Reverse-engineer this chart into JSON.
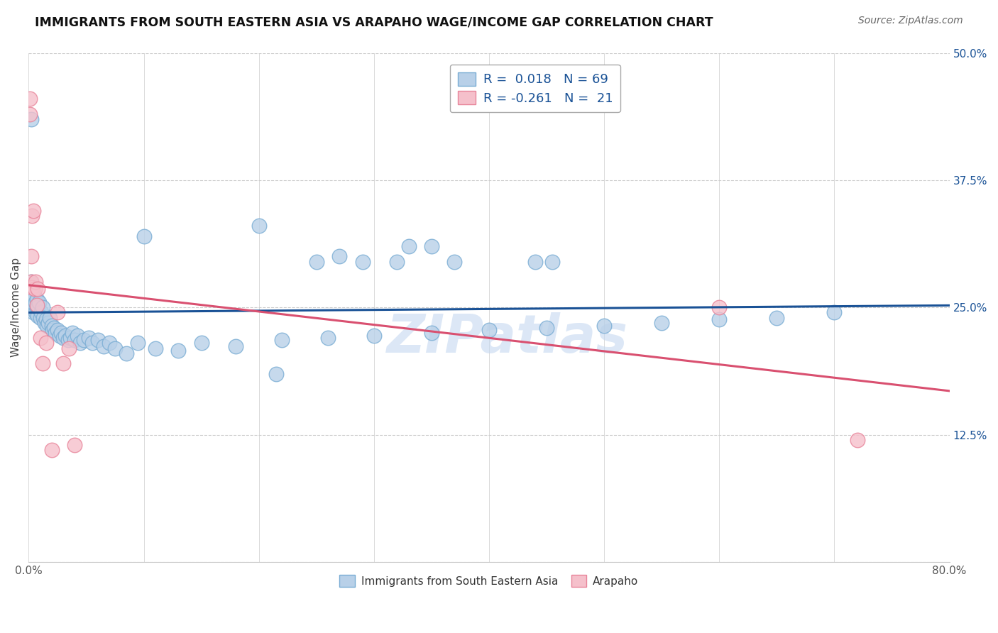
{
  "title": "IMMIGRANTS FROM SOUTH EASTERN ASIA VS ARAPAHO WAGE/INCOME GAP CORRELATION CHART",
  "source": "Source: ZipAtlas.com",
  "ylabel": "Wage/Income Gap",
  "xlim": [
    0.0,
    0.8
  ],
  "ylim": [
    0.0,
    0.5
  ],
  "xticks": [
    0.0,
    0.1,
    0.2,
    0.3,
    0.4,
    0.5,
    0.6,
    0.7,
    0.8
  ],
  "yticks": [
    0.0,
    0.125,
    0.25,
    0.375,
    0.5
  ],
  "yticklabels_right": [
    "",
    "12.5%",
    "25.0%",
    "37.5%",
    "50.0%"
  ],
  "blue_color": "#b8d0e8",
  "blue_edge": "#7aadd4",
  "pink_color": "#f5c0cb",
  "pink_edge": "#e8849a",
  "trend_blue": "#1a5296",
  "trend_pink": "#d95070",
  "grid_color": "#cccccc",
  "watermark": "ZIPatlas",
  "watermark_color": "#c5d8f0",
  "legend_r_blue": "0.018",
  "legend_n_blue": "69",
  "legend_r_pink": "-0.261",
  "legend_n_pink": "21",
  "legend_label_blue": "Immigrants from South Eastern Asia",
  "legend_label_pink": "Arapaho",
  "blue_x": [
    0.001,
    0.001,
    0.002,
    0.002,
    0.002,
    0.003,
    0.003,
    0.003,
    0.004,
    0.004,
    0.004,
    0.005,
    0.005,
    0.005,
    0.006,
    0.006,
    0.007,
    0.007,
    0.008,
    0.008,
    0.009,
    0.01,
    0.011,
    0.012,
    0.013,
    0.014,
    0.015,
    0.016,
    0.017,
    0.018,
    0.02,
    0.021,
    0.022,
    0.023,
    0.025,
    0.027,
    0.028,
    0.03,
    0.032,
    0.034,
    0.036,
    0.038,
    0.04,
    0.042,
    0.045,
    0.048,
    0.052,
    0.055,
    0.06,
    0.065,
    0.07,
    0.075,
    0.085,
    0.095,
    0.11,
    0.13,
    0.15,
    0.18,
    0.22,
    0.26,
    0.3,
    0.35,
    0.4,
    0.45,
    0.5,
    0.55,
    0.6,
    0.65,
    0.7
  ],
  "blue_y": [
    0.26,
    0.27,
    0.25,
    0.265,
    0.275,
    0.255,
    0.26,
    0.265,
    0.245,
    0.255,
    0.265,
    0.248,
    0.252,
    0.26,
    0.245,
    0.255,
    0.25,
    0.258,
    0.242,
    0.25,
    0.255,
    0.24,
    0.245,
    0.25,
    0.24,
    0.235,
    0.238,
    0.232,
    0.235,
    0.24,
    0.232,
    0.228,
    0.23,
    0.225,
    0.228,
    0.222,
    0.225,
    0.22,
    0.222,
    0.218,
    0.22,
    0.225,
    0.218,
    0.222,
    0.215,
    0.218,
    0.22,
    0.215,
    0.218,
    0.212,
    0.215,
    0.21,
    0.205,
    0.215,
    0.21,
    0.208,
    0.215,
    0.212,
    0.218,
    0.22,
    0.222,
    0.225,
    0.228,
    0.23,
    0.232,
    0.235,
    0.238,
    0.24,
    0.245
  ],
  "blue_x_extra": [
    0.002,
    0.33,
    0.1,
    0.2,
    0.215,
    0.44,
    0.455,
    0.35,
    0.37,
    0.32,
    0.29,
    0.27,
    0.25
  ],
  "blue_y_extra": [
    0.435,
    0.31,
    0.32,
    0.33,
    0.185,
    0.295,
    0.295,
    0.31,
    0.295,
    0.295,
    0.295,
    0.3,
    0.295
  ],
  "pink_x": [
    0.001,
    0.001,
    0.002,
    0.002,
    0.003,
    0.003,
    0.004,
    0.005,
    0.006,
    0.007,
    0.008,
    0.01,
    0.012,
    0.015,
    0.02,
    0.025,
    0.03,
    0.035,
    0.04,
    0.6,
    0.72
  ],
  "pink_y": [
    0.455,
    0.44,
    0.3,
    0.275,
    0.34,
    0.27,
    0.345,
    0.268,
    0.275,
    0.252,
    0.268,
    0.22,
    0.195,
    0.215,
    0.11,
    0.245,
    0.195,
    0.21,
    0.115,
    0.25,
    0.12
  ],
  "blue_trend_x": [
    0.0,
    0.8
  ],
  "blue_trend_y": [
    0.245,
    0.252
  ],
  "pink_trend_x": [
    0.0,
    0.8
  ],
  "pink_trend_y": [
    0.272,
    0.168
  ]
}
